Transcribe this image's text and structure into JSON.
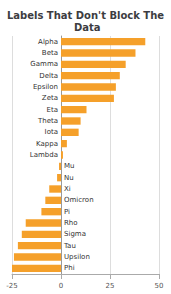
{
  "chart_data": {
    "type": "bar",
    "title": "Labels That Don't Block The Data",
    "orientation": "horizontal",
    "categories": [
      "Alpha",
      "Beta",
      "Gamma",
      "Delta",
      "Epsilon",
      "Zeta",
      "Eta",
      "Theta",
      "Iota",
      "Kappa",
      "Lambda",
      "Mu",
      "Nu",
      "Xi",
      "Omicron",
      "Pi",
      "Rho",
      "Sigma",
      "Tau",
      "Upsilon",
      "Phi"
    ],
    "values": [
      43,
      38,
      33,
      30,
      28,
      27,
      13,
      10,
      9,
      3,
      1,
      -1,
      -2,
      -6,
      -8,
      -10,
      -18,
      -20,
      -22,
      -24,
      -25
    ],
    "color": "#F5A02A",
    "xlim": [
      -25,
      50
    ],
    "xticks": [
      -25,
      0,
      25,
      50
    ],
    "grid": true,
    "tick_labels": "x"
  }
}
